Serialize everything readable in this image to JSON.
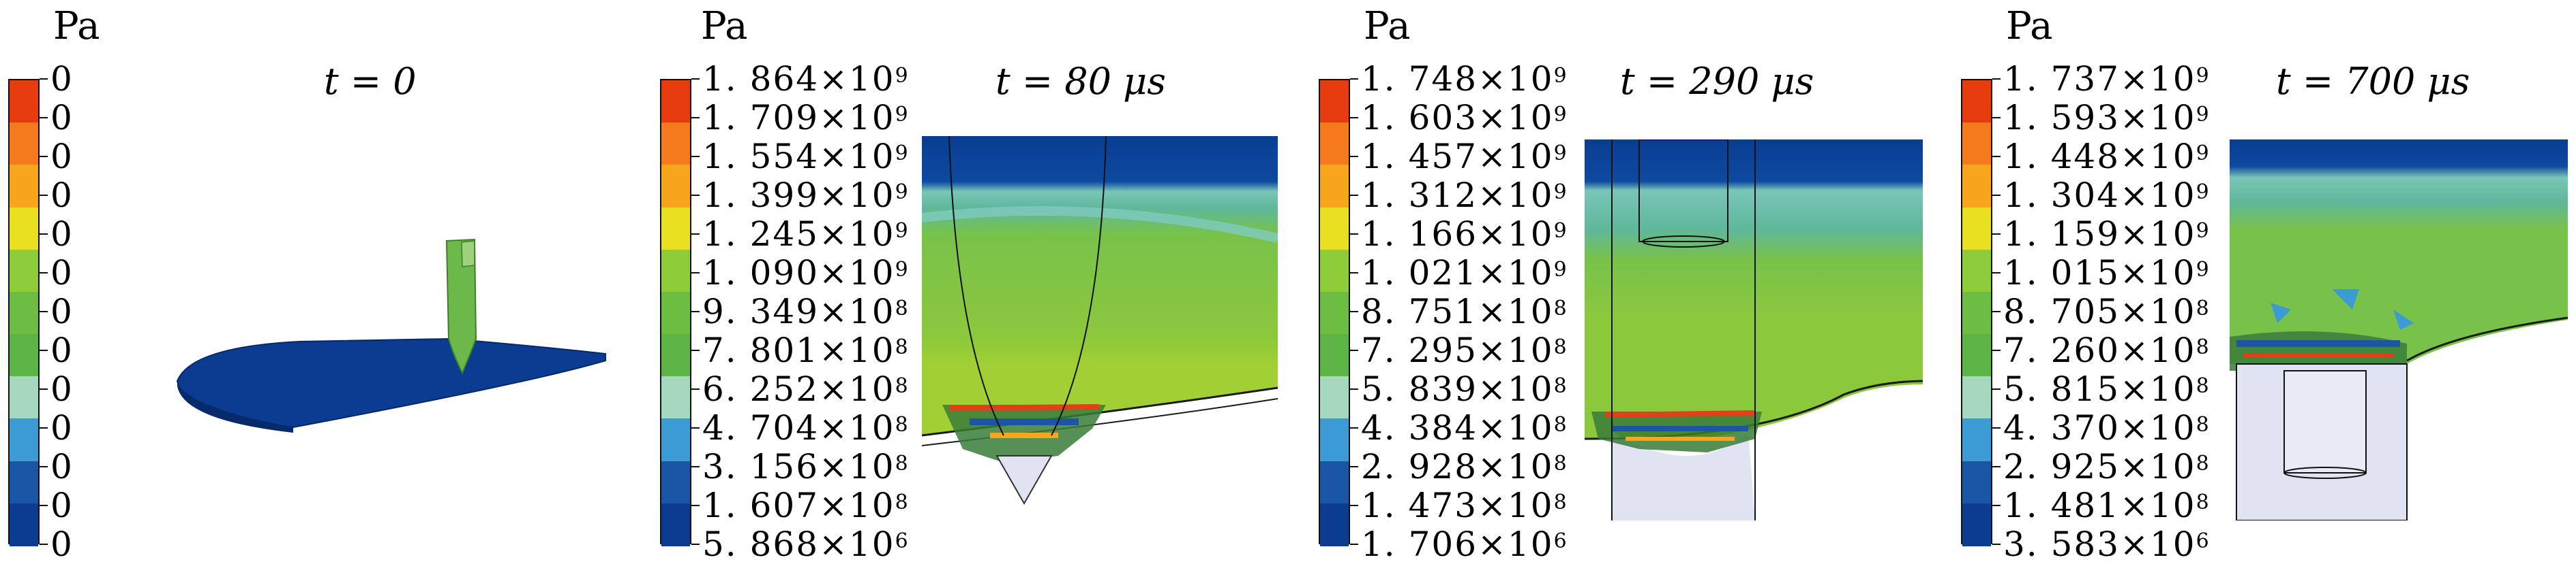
{
  "colors": [
    "#e63b0f",
    "#f57a1c",
    "#f7a51b",
    "#e8e020",
    "#8fcc3a",
    "#6dbd42",
    "#5cb445",
    "#a6d8c0",
    "#3c9bd4",
    "#1b56a6",
    "#0a3d91"
  ],
  "panels": [
    {
      "unit": "Pa",
      "title": "t = 0",
      "labels": [
        "0",
        "0",
        "0",
        "0",
        "0",
        "0",
        "0",
        "0",
        "0",
        "0",
        "0",
        "0",
        "0"
      ]
    },
    {
      "unit": "Pa",
      "title": "t = 80 μs",
      "labels": [
        {
          "m": "1. 864×10",
          "e": "9"
        },
        {
          "m": "1. 709×10",
          "e": "9"
        },
        {
          "m": "1. 554×10",
          "e": "9"
        },
        {
          "m": "1. 399×10",
          "e": "9"
        },
        {
          "m": "1. 245×10",
          "e": "9"
        },
        {
          "m": "1. 090×10",
          "e": "9"
        },
        {
          "m": "9. 349×10",
          "e": "8"
        },
        {
          "m": "7. 801×10",
          "e": "8"
        },
        {
          "m": "6. 252×10",
          "e": "8"
        },
        {
          "m": "4. 704×10",
          "e": "8"
        },
        {
          "m": "3. 156×10",
          "e": "8"
        },
        {
          "m": "1. 607×10",
          "e": "8"
        },
        {
          "m": "5. 868×10",
          "e": "6"
        }
      ]
    },
    {
      "unit": "Pa",
      "title": "t = 290 μs",
      "labels": [
        {
          "m": "1. 748×10",
          "e": "9"
        },
        {
          "m": "1. 603×10",
          "e": "9"
        },
        {
          "m": "1. 457×10",
          "e": "9"
        },
        {
          "m": "1. 312×10",
          "e": "9"
        },
        {
          "m": "1. 166×10",
          "e": "9"
        },
        {
          "m": "1. 021×10",
          "e": "9"
        },
        {
          "m": "8. 751×10",
          "e": "8"
        },
        {
          "m": "7. 295×10",
          "e": "8"
        },
        {
          "m": "5. 839×10",
          "e": "8"
        },
        {
          "m": "4. 384×10",
          "e": "8"
        },
        {
          "m": "2. 928×10",
          "e": "8"
        },
        {
          "m": "1. 473×10",
          "e": "8"
        },
        {
          "m": "1. 706×10",
          "e": "6"
        }
      ]
    },
    {
      "unit": "Pa",
      "title": "t = 700 μs",
      "labels": [
        {
          "m": "1. 737×10",
          "e": "9"
        },
        {
          "m": "1. 593×10",
          "e": "9"
        },
        {
          "m": "1. 448×10",
          "e": "9"
        },
        {
          "m": "1. 304×10",
          "e": "9"
        },
        {
          "m": "1. 159×10",
          "e": "9"
        },
        {
          "m": "1. 015×10",
          "e": "9"
        },
        {
          "m": "8. 705×10",
          "e": "8"
        },
        {
          "m": "7. 260×10",
          "e": "8"
        },
        {
          "m": "5. 815×10",
          "e": "8"
        },
        {
          "m": "4. 370×10",
          "e": "8"
        },
        {
          "m": "2. 925×10",
          "e": "8"
        },
        {
          "m": "1. 481×10",
          "e": "8"
        },
        {
          "m": "3. 583×10",
          "e": "6"
        }
      ]
    }
  ]
}
